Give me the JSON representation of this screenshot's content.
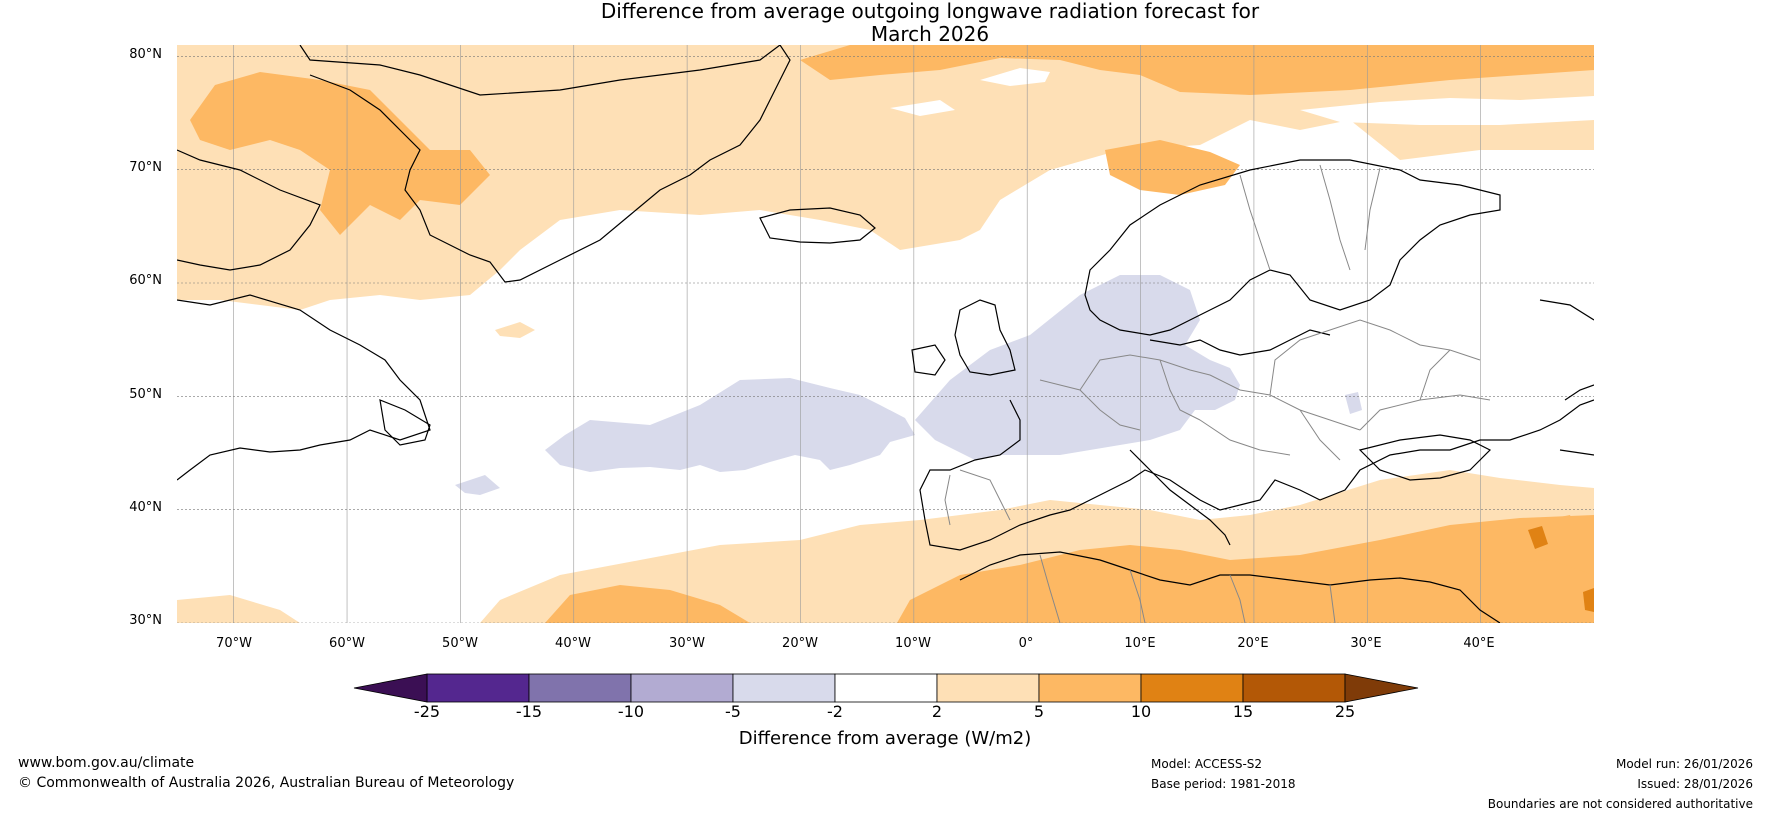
{
  "title": {
    "line1": "Difference from average outgoing longwave radiation forecast for",
    "line2": "March 2026"
  },
  "map": {
    "latitude_labels": [
      "80°N",
      "70°N",
      "60°N",
      "50°N",
      "40°N",
      "30°N"
    ],
    "longitude_labels": [
      "70°W",
      "60°W",
      "50°W",
      "40°W",
      "30°W",
      "20°W",
      "10°W",
      "0°",
      "10°E",
      "20°E",
      "30°E",
      "40°E"
    ],
    "extent": {
      "lon_min": -75,
      "lon_max": 50,
      "lat_min": 30,
      "lat_max": 81
    }
  },
  "colorbar": {
    "label": "Difference from average (W/m2)",
    "ticks": [
      "-25",
      "-15",
      "-10",
      "-5",
      "-2",
      "2",
      "5",
      "10",
      "15",
      "25"
    ],
    "colors": {
      "below_min": "#3b0f54",
      "lt_m15": "#54278f",
      "m15_m10": "#8073ac",
      "m10_m5": "#b2abd2",
      "m5_m2": "#d8daeb",
      "m2_p2": "#ffffff",
      "p2_p5": "#fee0b6",
      "p5_p10": "#fdb863",
      "p10_p15": "#e08214",
      "p15_p25": "#b35806",
      "above_max": "#7f3b08"
    }
  },
  "footer": {
    "website": "www.bom.gov.au/climate",
    "copyright": "© Commonwealth of Australia 2026, Australian Bureau of Meteorology",
    "model": "Model: ACCESS-S2",
    "base_period": "Base period: 1981-2018",
    "model_run": "Model run: 26/01/2026",
    "issued": "Issued: 28/01/2026",
    "disclaimer": "Boundaries are not considered authoritative"
  }
}
